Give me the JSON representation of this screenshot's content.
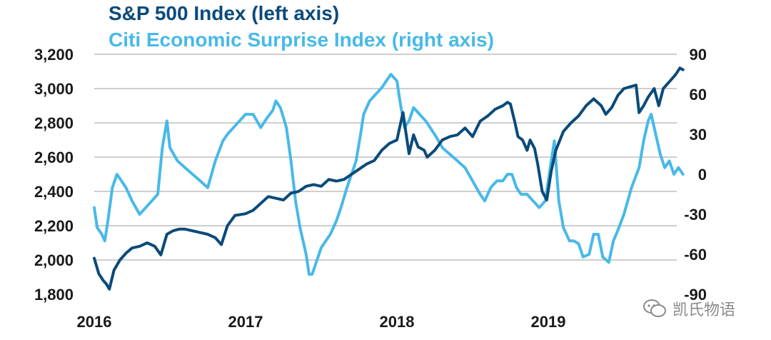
{
  "chart_data": {
    "type": "line",
    "series": [
      {
        "name": "S&P 500 Index (left axis)",
        "axis": "left",
        "color": "#0a4a7a",
        "points": [
          [
            2016.0,
            2010
          ],
          [
            2016.03,
            1920
          ],
          [
            2016.06,
            1880
          ],
          [
            2016.08,
            1860
          ],
          [
            2016.1,
            1830
          ],
          [
            2016.13,
            1940
          ],
          [
            2016.17,
            2000
          ],
          [
            2016.21,
            2040
          ],
          [
            2016.25,
            2070
          ],
          [
            2016.3,
            2080
          ],
          [
            2016.35,
            2100
          ],
          [
            2016.4,
            2080
          ],
          [
            2016.44,
            2030
          ],
          [
            2016.48,
            2150
          ],
          [
            2016.52,
            2170
          ],
          [
            2016.56,
            2180
          ],
          [
            2016.6,
            2180
          ],
          [
            2016.65,
            2170
          ],
          [
            2016.7,
            2160
          ],
          [
            2016.75,
            2150
          ],
          [
            2016.8,
            2130
          ],
          [
            2016.84,
            2090
          ],
          [
            2016.88,
            2200
          ],
          [
            2016.93,
            2260
          ],
          [
            2017.0,
            2270
          ],
          [
            2017.05,
            2290
          ],
          [
            2017.1,
            2330
          ],
          [
            2017.15,
            2370
          ],
          [
            2017.2,
            2360
          ],
          [
            2017.25,
            2350
          ],
          [
            2017.3,
            2390
          ],
          [
            2017.35,
            2400
          ],
          [
            2017.4,
            2430
          ],
          [
            2017.45,
            2440
          ],
          [
            2017.5,
            2430
          ],
          [
            2017.55,
            2470
          ],
          [
            2017.6,
            2460
          ],
          [
            2017.65,
            2470
          ],
          [
            2017.7,
            2500
          ],
          [
            2017.75,
            2530
          ],
          [
            2017.8,
            2560
          ],
          [
            2017.85,
            2580
          ],
          [
            2017.9,
            2640
          ],
          [
            2017.95,
            2680
          ],
          [
            2018.0,
            2700
          ],
          [
            2018.02,
            2780
          ],
          [
            2018.04,
            2860
          ],
          [
            2018.06,
            2740
          ],
          [
            2018.08,
            2620
          ],
          [
            2018.11,
            2730
          ],
          [
            2018.14,
            2660
          ],
          [
            2018.18,
            2640
          ],
          [
            2018.2,
            2600
          ],
          [
            2018.25,
            2640
          ],
          [
            2018.3,
            2700
          ],
          [
            2018.35,
            2720
          ],
          [
            2018.4,
            2730
          ],
          [
            2018.45,
            2770
          ],
          [
            2018.5,
            2720
          ],
          [
            2018.55,
            2810
          ],
          [
            2018.6,
            2840
          ],
          [
            2018.65,
            2880
          ],
          [
            2018.7,
            2900
          ],
          [
            2018.73,
            2920
          ],
          [
            2018.75,
            2910
          ],
          [
            2018.78,
            2800
          ],
          [
            2018.8,
            2720
          ],
          [
            2018.83,
            2700
          ],
          [
            2018.86,
            2640
          ],
          [
            2018.88,
            2700
          ],
          [
            2018.91,
            2650
          ],
          [
            2018.93,
            2560
          ],
          [
            2018.96,
            2400
          ],
          [
            2018.99,
            2350
          ],
          [
            2019.02,
            2520
          ],
          [
            2019.05,
            2640
          ],
          [
            2019.1,
            2750
          ],
          [
            2019.15,
            2800
          ],
          [
            2019.2,
            2840
          ],
          [
            2019.25,
            2900
          ],
          [
            2019.3,
            2940
          ],
          [
            2019.35,
            2900
          ],
          [
            2019.38,
            2850
          ],
          [
            2019.42,
            2890
          ],
          [
            2019.46,
            2960
          ],
          [
            2019.5,
            3000
          ],
          [
            2019.54,
            3010
          ],
          [
            2019.58,
            3020
          ],
          [
            2019.6,
            2860
          ],
          [
            2019.63,
            2900
          ],
          [
            2019.66,
            2950
          ],
          [
            2019.7,
            3000
          ],
          [
            2019.73,
            2900
          ],
          [
            2019.76,
            3000
          ],
          [
            2019.8,
            3040
          ],
          [
            2019.84,
            3080
          ],
          [
            2019.87,
            3120
          ],
          [
            2019.89,
            3110
          ]
        ]
      },
      {
        "name": "Citi Economic Surprise Index (right axis)",
        "axis": "right",
        "color": "#48b9e8",
        "points": [
          [
            2016.0,
            -25
          ],
          [
            2016.02,
            -40
          ],
          [
            2016.05,
            -45
          ],
          [
            2016.07,
            -50
          ],
          [
            2016.09,
            -35
          ],
          [
            2016.12,
            -10
          ],
          [
            2016.15,
            0
          ],
          [
            2016.18,
            -5
          ],
          [
            2016.21,
            -10
          ],
          [
            2016.25,
            -20
          ],
          [
            2016.3,
            -30
          ],
          [
            2016.34,
            -25
          ],
          [
            2016.38,
            -20
          ],
          [
            2016.42,
            -15
          ],
          [
            2016.45,
            20
          ],
          [
            2016.48,
            40
          ],
          [
            2016.5,
            20
          ],
          [
            2016.55,
            10
          ],
          [
            2016.6,
            5
          ],
          [
            2016.65,
            0
          ],
          [
            2016.7,
            -5
          ],
          [
            2016.75,
            -10
          ],
          [
            2016.8,
            10
          ],
          [
            2016.85,
            25
          ],
          [
            2016.88,
            30
          ],
          [
            2016.92,
            35
          ],
          [
            2016.96,
            40
          ],
          [
            2017.0,
            45
          ],
          [
            2017.05,
            45
          ],
          [
            2017.1,
            35
          ],
          [
            2017.14,
            42
          ],
          [
            2017.18,
            48
          ],
          [
            2017.2,
            55
          ],
          [
            2017.23,
            50
          ],
          [
            2017.27,
            35
          ],
          [
            2017.3,
            10
          ],
          [
            2017.33,
            -20
          ],
          [
            2017.36,
            -40
          ],
          [
            2017.4,
            -60
          ],
          [
            2017.42,
            -75
          ],
          [
            2017.44,
            -75
          ],
          [
            2017.47,
            -65
          ],
          [
            2017.5,
            -55
          ],
          [
            2017.53,
            -50
          ],
          [
            2017.56,
            -45
          ],
          [
            2017.6,
            -35
          ],
          [
            2017.63,
            -25
          ],
          [
            2017.67,
            -10
          ],
          [
            2017.7,
            0
          ],
          [
            2017.73,
            10
          ],
          [
            2017.76,
            30
          ],
          [
            2017.78,
            45
          ],
          [
            2017.82,
            55
          ],
          [
            2017.86,
            60
          ],
          [
            2017.9,
            65
          ],
          [
            2017.93,
            70
          ],
          [
            2017.96,
            75
          ],
          [
            2018.0,
            70
          ],
          [
            2018.02,
            55
          ],
          [
            2018.05,
            35
          ],
          [
            2018.08,
            40
          ],
          [
            2018.11,
            50
          ],
          [
            2018.15,
            45
          ],
          [
            2018.19,
            40
          ],
          [
            2018.22,
            35
          ],
          [
            2018.26,
            28
          ],
          [
            2018.3,
            20
          ],
          [
            2018.35,
            15
          ],
          [
            2018.4,
            10
          ],
          [
            2018.45,
            5
          ],
          [
            2018.5,
            -5
          ],
          [
            2018.55,
            -15
          ],
          [
            2018.58,
            -20
          ],
          [
            2018.62,
            -10
          ],
          [
            2018.66,
            -5
          ],
          [
            2018.7,
            -5
          ],
          [
            2018.73,
            0
          ],
          [
            2018.76,
            0
          ],
          [
            2018.79,
            -10
          ],
          [
            2018.82,
            -15
          ],
          [
            2018.86,
            -15
          ],
          [
            2018.9,
            -20
          ],
          [
            2018.94,
            -25
          ],
          [
            2018.98,
            -20
          ],
          [
            2019.02,
            10
          ],
          [
            2019.04,
            25
          ],
          [
            2019.07,
            -20
          ],
          [
            2019.1,
            -40
          ],
          [
            2019.14,
            -50
          ],
          [
            2019.17,
            -50
          ],
          [
            2019.2,
            -52
          ],
          [
            2019.23,
            -62
          ],
          [
            2019.27,
            -60
          ],
          [
            2019.3,
            -45
          ],
          [
            2019.33,
            -45
          ],
          [
            2019.36,
            -62
          ],
          [
            2019.4,
            -66
          ],
          [
            2019.43,
            -50
          ],
          [
            2019.46,
            -42
          ],
          [
            2019.5,
            -30
          ],
          [
            2019.55,
            -10
          ],
          [
            2019.6,
            5
          ],
          [
            2019.63,
            25
          ],
          [
            2019.66,
            40
          ],
          [
            2019.68,
            45
          ],
          [
            2019.71,
            30
          ],
          [
            2019.74,
            15
          ],
          [
            2019.77,
            5
          ],
          [
            2019.8,
            10
          ],
          [
            2019.83,
            0
          ],
          [
            2019.86,
            5
          ],
          [
            2019.89,
            0
          ]
        ]
      }
    ],
    "left_axis": {
      "ticks": [
        1800,
        2000,
        2200,
        2400,
        2600,
        2800,
        3000,
        3200
      ],
      "tick_labels": [
        "1,800",
        "2,000",
        "2,200",
        "2,400",
        "2,600",
        "2,800",
        "3,000",
        "3,200"
      ],
      "ylim": [
        1800,
        3200
      ]
    },
    "right_axis": {
      "ticks": [
        -90,
        -60,
        -30,
        0,
        30,
        60,
        90
      ],
      "tick_labels": [
        "-90",
        "-60",
        "-30",
        "0",
        "30",
        "60",
        "90"
      ],
      "ylim": [
        -90,
        90
      ]
    },
    "x_axis": {
      "ticks": [
        2016,
        2017,
        2018,
        2019
      ],
      "tick_labels": [
        "2016",
        "2017",
        "2018",
        "2019"
      ],
      "xlim": [
        2016,
        2019.9
      ]
    },
    "grid": "horizontal",
    "legend": [
      {
        "label": "S&P 500 Index (left axis)",
        "color": "#0a4a7a"
      },
      {
        "label": "Citi Economic Surprise Index (right axis)",
        "color": "#48b9e8"
      }
    ],
    "colors": {
      "gridline": "#b0b0b0",
      "tick_text": "#1a1a1a",
      "watermark": "#8a8a8a"
    }
  },
  "watermark": {
    "text": "凯氏物语",
    "icon": "chat-bubble-icon"
  }
}
